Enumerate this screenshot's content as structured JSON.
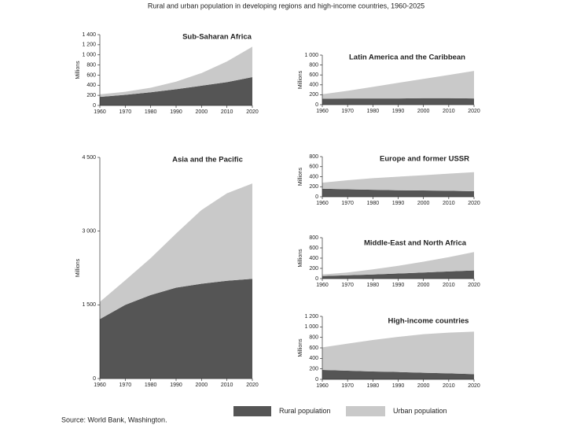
{
  "title": "Rural and urban population in developing regions and high-income countries, 1960-2025",
  "source": "Source: World Bank, Washington.",
  "chart_data": [
    {
      "type": "area",
      "title": "Sub-Saharan Africa",
      "y_label": "Millions",
      "x": [
        1960,
        1970,
        1980,
        1990,
        2000,
        2010,
        2020
      ],
      "xlim": [
        1960,
        2020
      ],
      "xticks": [
        1960,
        1970,
        1980,
        1990,
        2000,
        2010,
        2020
      ],
      "ylim": [
        0,
        1400
      ],
      "yticks": [
        0,
        200,
        400,
        600,
        800,
        {
          "value": 1000,
          "label": "1 000"
        },
        {
          "value": 1200,
          "label": "1 200"
        },
        {
          "value": 1400,
          "label": "1 400"
        }
      ],
      "series": [
        {
          "name": "Rural population",
          "color": "#555555",
          "values": [
            170,
            210,
            260,
            320,
            390,
            460,
            560
          ]
        },
        {
          "name": "Urban population",
          "color": "#c9c9c9",
          "values": [
            50,
            60,
            90,
            150,
            250,
            410,
            600
          ]
        }
      ]
    },
    {
      "type": "area",
      "title": "Latin America and the Caribbean",
      "y_label": "Millions",
      "x": [
        1960,
        1970,
        1980,
        1990,
        2000,
        2010,
        2020
      ],
      "xlim": [
        1960,
        2020
      ],
      "xticks": [
        1960,
        1970,
        1980,
        1990,
        2000,
        2010,
        2020
      ],
      "ylim": [
        0,
        1000
      ],
      "yticks": [
        0,
        200,
        400,
        600,
        800,
        {
          "value": 1000,
          "label": "1 000"
        }
      ],
      "series": [
        {
          "color": "#555555",
          "values": [
            120,
            125,
            125,
            125,
            130,
            130,
            125
          ]
        },
        {
          "color": "#c9c9c9",
          "values": [
            90,
            155,
            235,
            315,
            390,
            470,
            555
          ]
        }
      ]
    },
    {
      "type": "area",
      "title": "Asia and the Pacific",
      "y_label": "Millions",
      "x": [
        1960,
        1970,
        1980,
        1990,
        2000,
        2010,
        2020
      ],
      "xlim": [
        1960,
        2020
      ],
      "xticks": [
        1960,
        1970,
        1980,
        1990,
        2000,
        2010,
        2020
      ],
      "ylim": [
        0,
        4500
      ],
      "yticks": [
        0,
        {
          "value": 1500,
          "label": "1 500"
        },
        {
          "value": 3000,
          "label": "3 000"
        },
        {
          "value": 4500,
          "label": "4 500"
        }
      ],
      "series": [
        {
          "color": "#555555",
          "values": [
            1210,
            1500,
            1700,
            1850,
            1930,
            1990,
            2030
          ]
        },
        {
          "color": "#c9c9c9",
          "values": [
            350,
            500,
            750,
            1100,
            1500,
            1780,
            1940
          ]
        }
      ]
    },
    {
      "type": "area",
      "title": "Europe and former USSR",
      "y_label": "Millions",
      "x": [
        1960,
        1970,
        1980,
        1990,
        2000,
        2010,
        2020
      ],
      "xlim": [
        1960,
        2020
      ],
      "xticks": [
        1960,
        1970,
        1980,
        1990,
        2000,
        2010,
        2020
      ],
      "ylim": [
        0,
        800
      ],
      "yticks": [
        0,
        200,
        400,
        600,
        800
      ],
      "series": [
        {
          "color": "#555555",
          "values": [
            160,
            150,
            140,
            130,
            125,
            120,
            110
          ]
        },
        {
          "color": "#c9c9c9",
          "values": [
            120,
            180,
            230,
            270,
            305,
            340,
            380
          ]
        }
      ]
    },
    {
      "type": "area",
      "title": "Middle-East and North Africa",
      "y_label": "Millions",
      "x": [
        1960,
        1970,
        1980,
        1990,
        2000,
        2010,
        2020
      ],
      "xlim": [
        1960,
        2020
      ],
      "xticks": [
        1960,
        1970,
        1980,
        1990,
        2000,
        2010,
        2020
      ],
      "ylim": [
        0,
        800
      ],
      "yticks": [
        0,
        200,
        400,
        600,
        800
      ],
      "series": [
        {
          "color": "#555555",
          "values": [
            50,
            65,
            80,
            100,
            120,
            140,
            160
          ]
        },
        {
          "color": "#c9c9c9",
          "values": [
            30,
            55,
            100,
            150,
            210,
            280,
            360
          ]
        }
      ]
    },
    {
      "type": "area",
      "title": "High-income countries",
      "y_label": "Millions",
      "x": [
        1960,
        1970,
        1980,
        1990,
        2000,
        2010,
        2020
      ],
      "xlim": [
        1960,
        2020
      ],
      "xticks": [
        1960,
        1970,
        1980,
        1990,
        2000,
        2010,
        2020
      ],
      "ylim": [
        0,
        1200
      ],
      "yticks": [
        0,
        200,
        400,
        600,
        800,
        {
          "value": 1000,
          "label": "1 000"
        },
        {
          "value": 1200,
          "label": "1 200"
        }
      ],
      "series": [
        {
          "color": "#555555",
          "values": [
            180,
            165,
            150,
            140,
            125,
            115,
            100
          ]
        },
        {
          "color": "#c9c9c9",
          "values": [
            430,
            515,
            600,
            670,
            735,
            775,
            810
          ]
        }
      ]
    }
  ]
}
